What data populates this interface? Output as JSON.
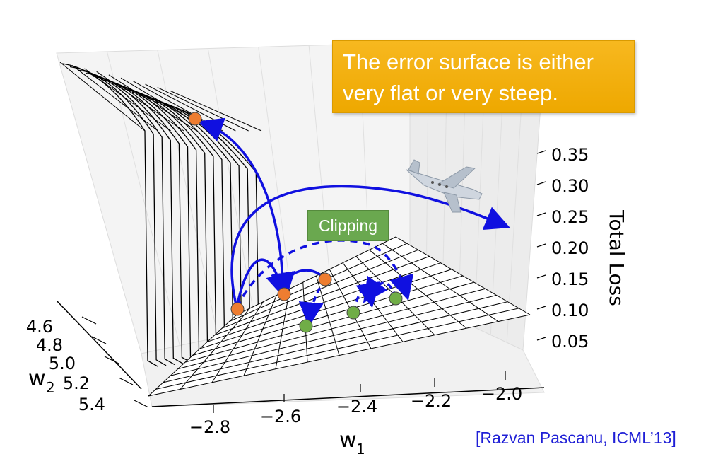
{
  "callout": {
    "line1": "The error surface is either",
    "line2": "very flat or very steep."
  },
  "clip_label": "Clipping",
  "citation": "[Razvan Pascanu, ICML’13]",
  "colors": {
    "orange_point": "#ee7d31",
    "green_point": "#70ad47",
    "arrow": "#1010e0",
    "callout_bg": "#f4b01b",
    "label_bg": "#6aa84f"
  },
  "chart_data": {
    "type": "surface-3d",
    "axes": {
      "x": {
        "label": "w",
        "subscript": "1",
        "ticks": [
          "−2.8",
          "−2.6",
          "−2.4",
          "−2.2",
          "−2.0"
        ]
      },
      "y": {
        "label": "w",
        "subscript": "2",
        "ticks": [
          "4.6",
          "4.8",
          "5.0",
          "5.2",
          "5.4"
        ]
      },
      "z": {
        "label": "Total Loss",
        "ticks": [
          "0.35",
          "0.30",
          "0.25",
          "0.20",
          "0.15",
          "0.10",
          "0.05"
        ]
      }
    },
    "surface": "cliff: very flat low region, steep wall rising to a high flat plateau",
    "points": [
      {
        "color": "orange",
        "where": "top of cliff"
      },
      {
        "color": "orange",
        "where": "base of cliff"
      },
      {
        "color": "orange",
        "where": "flat region"
      },
      {
        "color": "orange",
        "where": "flat region"
      },
      {
        "color": "green",
        "where": "flat region"
      },
      {
        "color": "green",
        "where": "flat region"
      },
      {
        "color": "green",
        "where": "flat region"
      }
    ],
    "grid": true
  }
}
